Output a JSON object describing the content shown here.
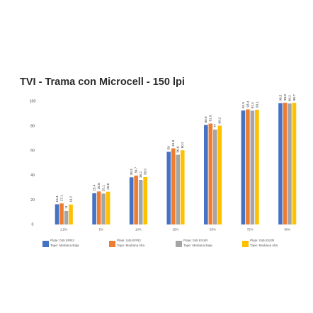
{
  "chart_data": {
    "type": "bar",
    "title": "TVI - Trama con Microcell - 150 lpi",
    "xlabel": "",
    "ylabel": "",
    "ylim": [
      0,
      100
    ],
    "yticks": [
      0,
      20,
      40,
      60,
      80,
      100
    ],
    "grid": false,
    "legend_position": "bottom",
    "categories": [
      "2.5%",
      "5%",
      "10%",
      "25%",
      "50%",
      "75%",
      "90%"
    ],
    "series": [
      {
        "name_line1": "Plate: 045 EPR2",
        "name_line2": "Tape: Mediana Baja",
        "color": "#4472c4",
        "values": [
          16.4,
          25.4,
          38.3,
          59.0,
          80.8,
          92.5,
          98.5
        ]
      },
      {
        "name_line1": "Plate: 045 EPR2",
        "name_line2": "Tape: Mediana Alta",
        "color": "#ed7d31",
        "values": [
          17.1,
          26.8,
          39.7,
          61.8,
          81.9,
          93.4,
          98.8
        ]
      },
      {
        "name_line1": "Plate: 045 ESXR",
        "name_line2": "Tape: Mediana Baja",
        "color": "#a5a5a5",
        "values": [
          11.0,
          25.1,
          36.2,
          56.6,
          77.0,
          92.4,
          98.2
        ]
      },
      {
        "name_line1": "Plate: 045 ESXR",
        "name_line2": "Tape: Mediana Alta",
        "color": "#ffc000",
        "values": [
          16.2,
          26.6,
          38.5,
          60.2,
          80.2,
          93.1,
          98.7
        ]
      }
    ]
  }
}
